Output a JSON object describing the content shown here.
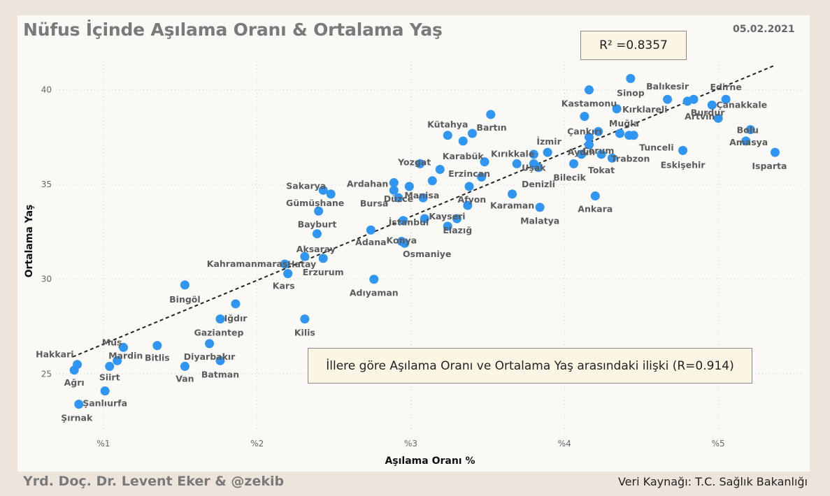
{
  "title": "Nüfus İçinde Aşılama Oranı & Ortalama Yaş",
  "date": "05.02.2021",
  "r2_label": "R² =0.8357",
  "note": "İllere göre Aşılama Oranı ve Ortalama Yaş arasındaki ilişki (R=0.914)",
  "footer_left": "Yrd. Doç. Dr. Levent Eker  & @zekib",
  "footer_right": "Veri Kaynağı: T.C. Sağlık Bakanlığı",
  "colors": {
    "point": "#2f96f3",
    "trend": "#222222",
    "panel": "#faf9f6",
    "background": "#ede5dc"
  },
  "chart_data": {
    "type": "scatter",
    "title": "Nüfus İçinde Aşılama Oranı & Ortalama Yaş",
    "xlabel": "Aşılama Oranı %",
    "ylabel": "Ortalama Yaş",
    "xlim": [
      0.6,
      5.55
    ],
    "ylim": [
      21.8,
      41.5
    ],
    "xticks": [
      {
        "v": 1,
        "label": "%1"
      },
      {
        "v": 2,
        "label": "%2"
      },
      {
        "v": 3,
        "label": "%3"
      },
      {
        "v": 4,
        "label": "%4"
      },
      {
        "v": 5,
        "label": "%5"
      }
    ],
    "yticks": [
      {
        "v": 25,
        "label": "25"
      },
      {
        "v": 30,
        "label": "30"
      },
      {
        "v": 35,
        "label": "35"
      },
      {
        "v": 40,
        "label": "40"
      }
    ],
    "grid": true,
    "trendline": {
      "x": [
        0.8,
        5.37
      ],
      "y": [
        25.9,
        41.3
      ],
      "style": "dashed"
    },
    "points": [
      {
        "name": "Hakkari",
        "x": 0.83,
        "y": 25.5
      },
      {
        "name": "Ağrı",
        "x": 0.81,
        "y": 25.2
      },
      {
        "name": "Şırnak",
        "x": 0.84,
        "y": 23.4
      },
      {
        "name": "Şanlıurfa",
        "x": 1.01,
        "y": 24.1
      },
      {
        "name": "Siirt",
        "x": 1.04,
        "y": 25.4
      },
      {
        "name": "Mardin",
        "x": 1.09,
        "y": 25.7
      },
      {
        "name": "Muş",
        "x": 1.13,
        "y": 26.4
      },
      {
        "name": "Bitlis",
        "x": 1.35,
        "y": 26.5
      },
      {
        "name": "Van",
        "x": 1.53,
        "y": 25.4
      },
      {
        "name": "Bingöl",
        "x": 1.53,
        "y": 29.7
      },
      {
        "name": "Diyarbakır",
        "x": 1.69,
        "y": 26.6
      },
      {
        "name": "Batman",
        "x": 1.76,
        "y": 25.7
      },
      {
        "name": "Gaziantep",
        "x": 1.76,
        "y": 27.9
      },
      {
        "name": "Iğdır",
        "x": 1.86,
        "y": 28.7
      },
      {
        "name": "Kahramanmaraş",
        "x": 2.18,
        "y": 30.8
      },
      {
        "name": "Hatay",
        "x": 2.2,
        "y": 30.3
      },
      {
        "name": "Kars",
        "x": 2.2,
        "y": 30.3
      },
      {
        "name": "Kilis",
        "x": 2.31,
        "y": 27.9
      },
      {
        "name": "Aksaray",
        "x": 2.31,
        "y": 31.2
      },
      {
        "name": "Erzurum",
        "x": 2.43,
        "y": 31.1
      },
      {
        "name": "Bayburt",
        "x": 2.39,
        "y": 32.4
      },
      {
        "name": "Gümüşhane",
        "x": 2.4,
        "y": 33.6
      },
      {
        "name": "Sakarya",
        "x": 2.43,
        "y": 34.7
      },
      {
        "name": "Sakarya-2",
        "x": 2.48,
        "y": 34.5
      },
      {
        "name": "Adıyaman",
        "x": 2.76,
        "y": 30.0
      },
      {
        "name": "Adana",
        "x": 2.74,
        "y": 32.6
      },
      {
        "name": "Ardahan",
        "x": 2.89,
        "y": 35.1
      },
      {
        "name": "Bursa",
        "x": 2.89,
        "y": 34.7
      },
      {
        "name": "Düzce",
        "x": 2.92,
        "y": 34.3
      },
      {
        "name": "İstanbul",
        "x": 2.95,
        "y": 33.1
      },
      {
        "name": "Konya",
        "x": 2.94,
        "y": 32.0
      },
      {
        "name": "Osmaniye",
        "x": 2.96,
        "y": 31.9
      },
      {
        "name": "Manisa",
        "x": 2.99,
        "y": 34.9
      },
      {
        "name": "Yozgat",
        "x": 3.06,
        "y": 36.1
      },
      {
        "name": "Afyon",
        "x": 3.08,
        "y": 34.3
      },
      {
        "name": "Kayseri",
        "x": 3.09,
        "y": 33.2
      },
      {
        "name": "Manisa-2",
        "x": 3.14,
        "y": 35.2
      },
      {
        "name": "Erzincan-2",
        "x": 3.19,
        "y": 35.8
      },
      {
        "name": "Kütahya",
        "x": 3.24,
        "y": 37.6
      },
      {
        "name": "Elazığ",
        "x": 3.24,
        "y": 32.8
      },
      {
        "name": "Kayseri-2",
        "x": 3.3,
        "y": 33.2
      },
      {
        "name": "Karabük",
        "x": 3.34,
        "y": 37.3
      },
      {
        "name": "Erzincan",
        "x": 3.38,
        "y": 34.9
      },
      {
        "name": "Bartın",
        "x": 3.4,
        "y": 37.7
      },
      {
        "name": "Afyon-2",
        "x": 3.37,
        "y": 33.9
      },
      {
        "name": "Erzincan-3",
        "x": 3.46,
        "y": 35.4
      },
      {
        "name": "Kırıkkale-2",
        "x": 3.48,
        "y": 36.2
      },
      {
        "name": "Bartın-2",
        "x": 3.52,
        "y": 38.7
      },
      {
        "name": "Karaman",
        "x": 3.66,
        "y": 34.5
      },
      {
        "name": "Kırıkkale",
        "x": 3.69,
        "y": 36.1
      },
      {
        "name": "Uşak",
        "x": 3.8,
        "y": 36.1
      },
      {
        "name": "Denizli",
        "x": 3.83,
        "y": 35.9
      },
      {
        "name": "Malatya",
        "x": 3.84,
        "y": 33.8
      },
      {
        "name": "İzmir",
        "x": 3.8,
        "y": 36.6
      },
      {
        "name": "İzmir-2",
        "x": 3.89,
        "y": 36.7
      },
      {
        "name": "Bilecik",
        "x": 4.06,
        "y": 36.1
      },
      {
        "name": "Aydın",
        "x": 4.11,
        "y": 36.6
      },
      {
        "name": "Çankırı",
        "x": 4.13,
        "y": 38.6
      },
      {
        "name": "Kastamonu",
        "x": 4.16,
        "y": 40.0
      },
      {
        "name": "Çankırı-2",
        "x": 4.16,
        "y": 37.5
      },
      {
        "name": "Aydın-2",
        "x": 4.16,
        "y": 37.1
      },
      {
        "name": "Ankara",
        "x": 4.2,
        "y": 34.4
      },
      {
        "name": "Muğla",
        "x": 4.22,
        "y": 37.8
      },
      {
        "name": "Tokat",
        "x": 4.24,
        "y": 36.6
      },
      {
        "name": "Çorum",
        "x": 4.31,
        "y": 36.4
      },
      {
        "name": "Kırklareli",
        "x": 4.34,
        "y": 39.0
      },
      {
        "name": "Muğla-2",
        "x": 4.36,
        "y": 37.7
      },
      {
        "name": "Trabzon",
        "x": 4.42,
        "y": 37.6
      },
      {
        "name": "Tunceli",
        "x": 4.45,
        "y": 37.6
      },
      {
        "name": "Sinop",
        "x": 4.43,
        "y": 40.6
      },
      {
        "name": "Balıkesir",
        "x": 4.67,
        "y": 39.5
      },
      {
        "name": "Eskişehir",
        "x": 4.77,
        "y": 36.8
      },
      {
        "name": "Artvin",
        "x": 4.8,
        "y": 39.4
      },
      {
        "name": "Artvin-2",
        "x": 4.84,
        "y": 39.5
      },
      {
        "name": "Çanakkale",
        "x": 4.96,
        "y": 39.2
      },
      {
        "name": "Burdur",
        "x": 5.0,
        "y": 38.5
      },
      {
        "name": "Edirne",
        "x": 5.05,
        "y": 39.5
      },
      {
        "name": "Amasya",
        "x": 5.18,
        "y": 37.3
      },
      {
        "name": "Bolu",
        "x": 5.21,
        "y": 37.9
      },
      {
        "name": "Isparta",
        "x": 5.37,
        "y": 36.7
      }
    ],
    "labels": [
      {
        "text": "Hakkari",
        "x": 0.83,
        "y": 25.5,
        "anchor": "end",
        "dx": -5,
        "dy": -10
      },
      {
        "text": "Ağrı",
        "x": 0.81,
        "y": 25.2,
        "anchor": "middle",
        "dx": 0,
        "dy": 22
      },
      {
        "text": "Şırnak",
        "x": 0.84,
        "y": 23.4,
        "anchor": "middle",
        "dx": -3,
        "dy": 24
      },
      {
        "text": "Şanlıurfa",
        "x": 1.01,
        "y": 24.1,
        "anchor": "middle",
        "dx": 0,
        "dy": 22
      },
      {
        "text": "Siirt",
        "x": 1.04,
        "y": 25.4,
        "anchor": "middle",
        "dx": 0,
        "dy": 20
      },
      {
        "text": "Mardin",
        "x": 1.09,
        "y": 25.7,
        "anchor": "middle",
        "dx": 12,
        "dy": -3
      },
      {
        "text": "Muş",
        "x": 1.13,
        "y": 26.4,
        "anchor": "end",
        "dx": -2,
        "dy": -3
      },
      {
        "text": "Bitlis",
        "x": 1.35,
        "y": 26.5,
        "anchor": "middle",
        "dx": 0,
        "dy": 22
      },
      {
        "text": "Van",
        "x": 1.53,
        "y": 25.4,
        "anchor": "middle",
        "dx": 0,
        "dy": 22
      },
      {
        "text": "Bingöl",
        "x": 1.53,
        "y": 29.7,
        "anchor": "middle",
        "dx": 0,
        "dy": 25
      },
      {
        "text": "Diyarbakır",
        "x": 1.69,
        "y": 26.6,
        "anchor": "middle",
        "dx": 0,
        "dy": 23
      },
      {
        "text": "Batman",
        "x": 1.76,
        "y": 25.7,
        "anchor": "middle",
        "dx": 0,
        "dy": 24
      },
      {
        "text": "Gaziantep",
        "x": 1.76,
        "y": 27.9,
        "anchor": "middle",
        "dx": -2,
        "dy": 24
      },
      {
        "text": "Iğdır",
        "x": 1.86,
        "y": 28.7,
        "anchor": "middle",
        "dx": 0,
        "dy": 25
      },
      {
        "text": "Kahramanmaraş",
        "x": 2.18,
        "y": 30.8,
        "anchor": "end",
        "dx": 4,
        "dy": 4
      },
      {
        "text": "Hatay",
        "x": 2.2,
        "y": 30.3,
        "anchor": "middle",
        "dx": 20,
        "dy": -9
      },
      {
        "text": "Kars",
        "x": 2.2,
        "y": 30.3,
        "anchor": "middle",
        "dx": -6,
        "dy": 22
      },
      {
        "text": "Kilis",
        "x": 2.31,
        "y": 27.9,
        "anchor": "middle",
        "dx": 0,
        "dy": 24
      },
      {
        "text": "Aksaray",
        "x": 2.31,
        "y": 31.2,
        "anchor": "middle",
        "dx": 16,
        "dy": -6
      },
      {
        "text": "Erzurum",
        "x": 2.43,
        "y": 31.1,
        "anchor": "middle",
        "dx": 0,
        "dy": 24
      },
      {
        "text": "Bayburt",
        "x": 2.39,
        "y": 32.4,
        "anchor": "middle",
        "dx": 0,
        "dy": -9
      },
      {
        "text": "Gümüşhane",
        "x": 2.4,
        "y": 33.6,
        "anchor": "middle",
        "dx": -5,
        "dy": -7
      },
      {
        "text": "Sakarya",
        "x": 2.43,
        "y": 34.7,
        "anchor": "end",
        "dx": 4,
        "dy": -2
      },
      {
        "text": "Adıyaman",
        "x": 2.76,
        "y": 30.0,
        "anchor": "middle",
        "dx": 0,
        "dy": 24
      },
      {
        "text": "Adana",
        "x": 2.74,
        "y": 32.6,
        "anchor": "middle",
        "dx": 0,
        "dy": 22
      },
      {
        "text": "Ardahan",
        "x": 2.89,
        "y": 35.1,
        "anchor": "end",
        "dx": -8,
        "dy": 6
      },
      {
        "text": "Bursa",
        "x": 2.89,
        "y": 34.7,
        "anchor": "end",
        "dx": -8,
        "dy": 23
      },
      {
        "text": "Düzce",
        "x": 2.92,
        "y": 34.3,
        "anchor": "middle",
        "dx": 0,
        "dy": 6
      },
      {
        "text": "İstanbul",
        "x": 2.95,
        "y": 33.1,
        "anchor": "middle",
        "dx": 8,
        "dy": 7
      },
      {
        "text": "Konya",
        "x": 2.94,
        "y": 32.0,
        "anchor": "middle",
        "dx": 0,
        "dy": 3
      },
      {
        "text": "Osmaniye",
        "x": 2.96,
        "y": 31.9,
        "anchor": "middle",
        "dx": 32,
        "dy": 20
      },
      {
        "text": "Manisa",
        "x": 2.99,
        "y": 34.9,
        "anchor": "middle",
        "dx": 18,
        "dy": 17
      },
      {
        "text": "Yozgat",
        "x": 3.06,
        "y": 36.1,
        "anchor": "middle",
        "dx": -8,
        "dy": 2
      },
      {
        "text": "Afyon",
        "x": 3.37,
        "y": 33.9,
        "anchor": "middle",
        "dx": 6,
        "dy": -4
      },
      {
        "text": "Kayseri",
        "x": 3.3,
        "y": 33.2,
        "anchor": "middle",
        "dx": -14,
        "dy": 1
      },
      {
        "text": "Kütahya",
        "x": 3.24,
        "y": 37.6,
        "anchor": "middle",
        "dx": 0,
        "dy": -11
      },
      {
        "text": "Elazığ",
        "x": 3.24,
        "y": 32.8,
        "anchor": "middle",
        "dx": 14,
        "dy": 10
      },
      {
        "text": "Karabük",
        "x": 3.34,
        "y": 37.3,
        "anchor": "middle",
        "dx": 0,
        "dy": 26
      },
      {
        "text": "Erzincan",
        "x": 3.38,
        "y": 34.9,
        "anchor": "middle",
        "dx": 0,
        "dy": -14
      },
      {
        "text": "Bartın",
        "x": 3.4,
        "y": 37.7,
        "anchor": "start",
        "dx": 6,
        "dy": -4
      },
      {
        "text": "Karaman",
        "x": 3.66,
        "y": 34.5,
        "anchor": "middle",
        "dx": 0,
        "dy": 21
      },
      {
        "text": "Kırıkkale",
        "x": 3.69,
        "y": 36.1,
        "anchor": "middle",
        "dx": -6,
        "dy": -10
      },
      {
        "text": "Uşak",
        "x": 3.8,
        "y": 36.1,
        "anchor": "middle",
        "dx": 0,
        "dy": 10
      },
      {
        "text": "Denizli",
        "x": 3.83,
        "y": 35.9,
        "anchor": "middle",
        "dx": 0,
        "dy": 28
      },
      {
        "text": "Malatya",
        "x": 3.84,
        "y": 33.8,
        "anchor": "middle",
        "dx": 0,
        "dy": 24
      },
      {
        "text": "İzmir",
        "x": 3.8,
        "y": 36.6,
        "anchor": "start",
        "dx": 4,
        "dy": -14
      },
      {
        "text": "Bilecik",
        "x": 4.06,
        "y": 36.1,
        "anchor": "middle",
        "dx": -6,
        "dy": 24
      },
      {
        "text": "Aydın",
        "x": 4.11,
        "y": 36.6,
        "anchor": "middle",
        "dx": 0,
        "dy": 1
      },
      {
        "text": "Çankırı",
        "x": 4.13,
        "y": 38.6,
        "anchor": "middle",
        "dx": 0,
        "dy": 26
      },
      {
        "text": "Kastamonu",
        "x": 4.16,
        "y": 40.0,
        "anchor": "middle",
        "dx": 0,
        "dy": 24
      },
      {
        "text": "Ankara",
        "x": 4.2,
        "y": 34.4,
        "anchor": "middle",
        "dx": 0,
        "dy": 23
      },
      {
        "text": "Muğla",
        "x": 4.36,
        "y": 37.7,
        "anchor": "middle",
        "dx": 6,
        "dy": -10
      },
      {
        "text": "Tokat",
        "x": 4.24,
        "y": 36.6,
        "anchor": "middle",
        "dx": 0,
        "dy": 27
      },
      {
        "text": "Çorum",
        "x": 4.31,
        "y": 36.4,
        "anchor": "middle",
        "dx": -20,
        "dy": -6
      },
      {
        "text": "Kırklareli",
        "x": 4.34,
        "y": 39.0,
        "anchor": "start",
        "dx": 8,
        "dy": 5
      },
      {
        "text": "Trabzon",
        "x": 4.42,
        "y": 37.6,
        "anchor": "middle",
        "dx": 2,
        "dy": 38
      },
      {
        "text": "Tunceli",
        "x": 4.45,
        "y": 37.6,
        "anchor": "start",
        "dx": 8,
        "dy": 22
      },
      {
        "text": "Sinop",
        "x": 4.43,
        "y": 40.6,
        "anchor": "middle",
        "dx": 0,
        "dy": 25
      },
      {
        "text": "Balıkesir",
        "x": 4.67,
        "y": 39.5,
        "anchor": "middle",
        "dx": 0,
        "dy": -14
      },
      {
        "text": "Eskişehir",
        "x": 4.77,
        "y": 36.8,
        "anchor": "middle",
        "dx": 0,
        "dy": 25
      },
      {
        "text": "Artvin",
        "x": 4.8,
        "y": 39.4,
        "anchor": "start",
        "dx": -4,
        "dy": 26
      },
      {
        "text": "Çanakkale",
        "x": 4.96,
        "y": 39.2,
        "anchor": "start",
        "dx": 6,
        "dy": 4
      },
      {
        "text": "Burdur",
        "x": 5.0,
        "y": 38.5,
        "anchor": "middle",
        "dx": -15,
        "dy": -4
      },
      {
        "text": "Edirne",
        "x": 5.05,
        "y": 39.5,
        "anchor": "middle",
        "dx": 0,
        "dy": -13
      },
      {
        "text": "Amasya",
        "x": 5.18,
        "y": 37.3,
        "anchor": "middle",
        "dx": 4,
        "dy": 6
      },
      {
        "text": "Bolu",
        "x": 5.21,
        "y": 37.9,
        "anchor": "middle",
        "dx": -4,
        "dy": 5
      },
      {
        "text": "Isparta",
        "x": 5.37,
        "y": 36.7,
        "anchor": "middle",
        "dx": -8,
        "dy": 24
      }
    ]
  }
}
